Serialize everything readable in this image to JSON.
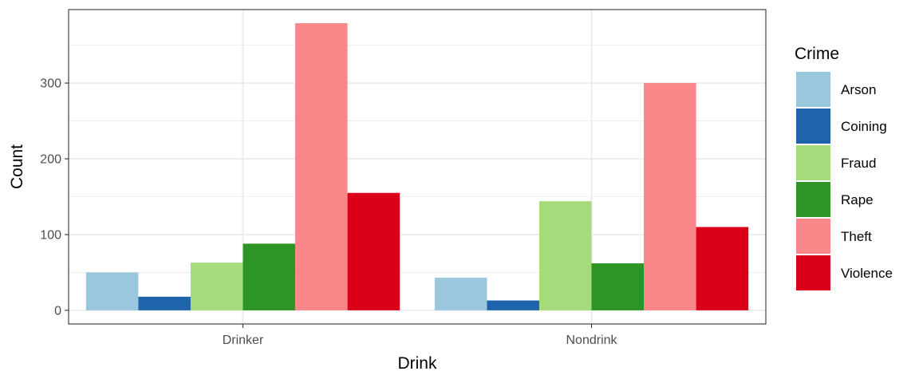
{
  "chart_data": {
    "type": "bar",
    "xlabel": "Drink",
    "ylabel": "Count",
    "categories": [
      "Drinker",
      "Nondrink"
    ],
    "series": [
      {
        "name": "Arson",
        "color": "#9AC6DE",
        "values": [
          50,
          43
        ]
      },
      {
        "name": "Coining",
        "color": "#1F64AA",
        "values": [
          18,
          13
        ]
      },
      {
        "name": "Fraud",
        "color": "#A6DB7B",
        "values": [
          63,
          144
        ]
      },
      {
        "name": "Rape",
        "color": "#2C9525",
        "values": [
          88,
          62
        ]
      },
      {
        "name": "Theft",
        "color": "#F98789",
        "values": [
          379,
          300
        ]
      },
      {
        "name": "Violence",
        "color": "#DB001A",
        "values": [
          155,
          110
        ]
      }
    ],
    "ylim": [
      -18,
      397
    ],
    "yticks": [
      0,
      100,
      200,
      300
    ],
    "grid": true,
    "legend": {
      "title": "Crime",
      "placement": "right"
    }
  }
}
